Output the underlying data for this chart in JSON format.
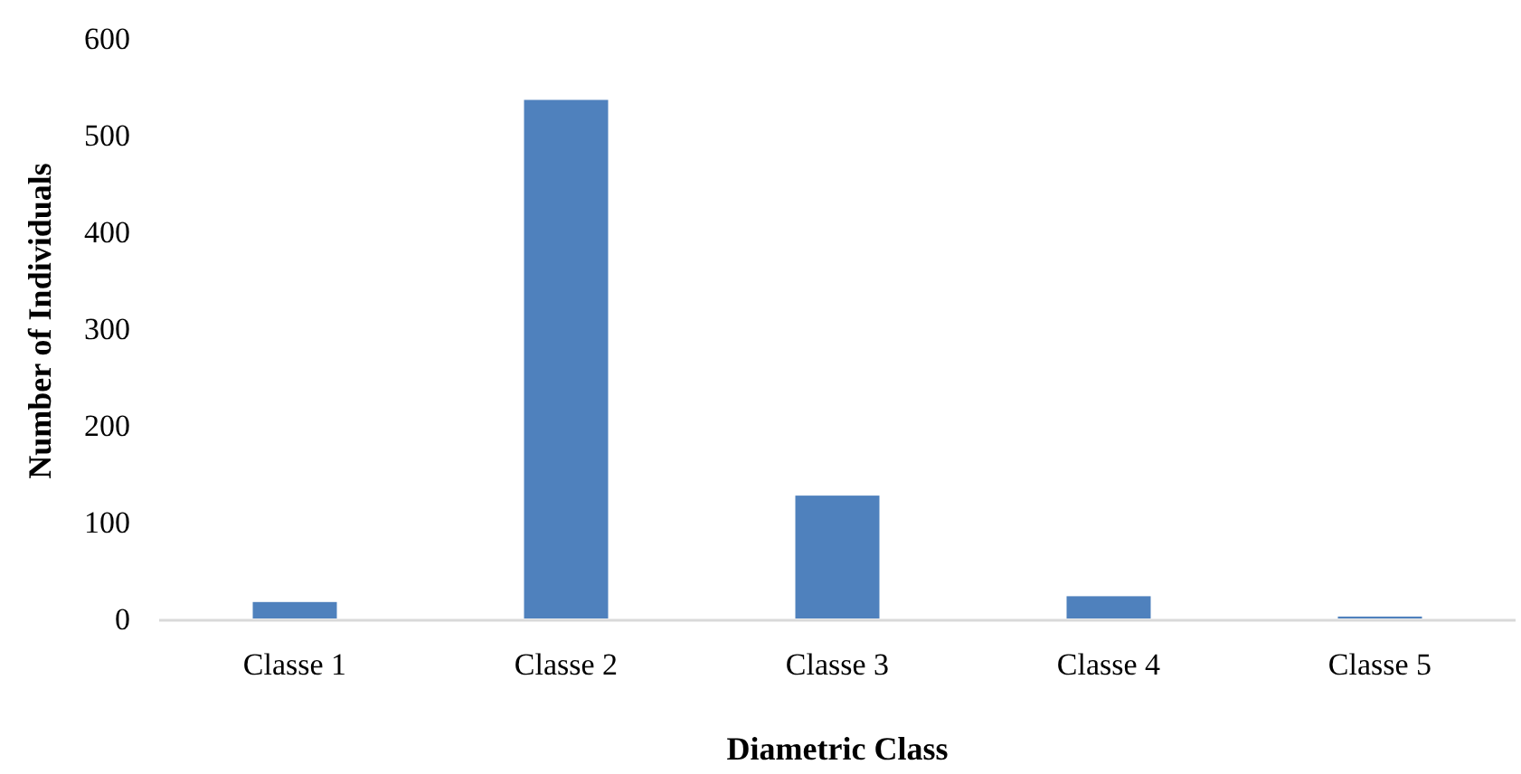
{
  "chart_data": {
    "type": "bar",
    "xlabel": "Diametric Class",
    "ylabel": "Number of Individuals",
    "categories": [
      "Classe 1",
      "Classe 2",
      "Classe 3",
      "Classe 4",
      "Classe 5"
    ],
    "values": [
      17,
      536,
      127,
      23,
      2
    ],
    "color": "#4f81bd",
    "ylim": [
      0,
      600
    ],
    "yticks": [
      0,
      100,
      200,
      300,
      400,
      500,
      600
    ],
    "grid": false
  }
}
